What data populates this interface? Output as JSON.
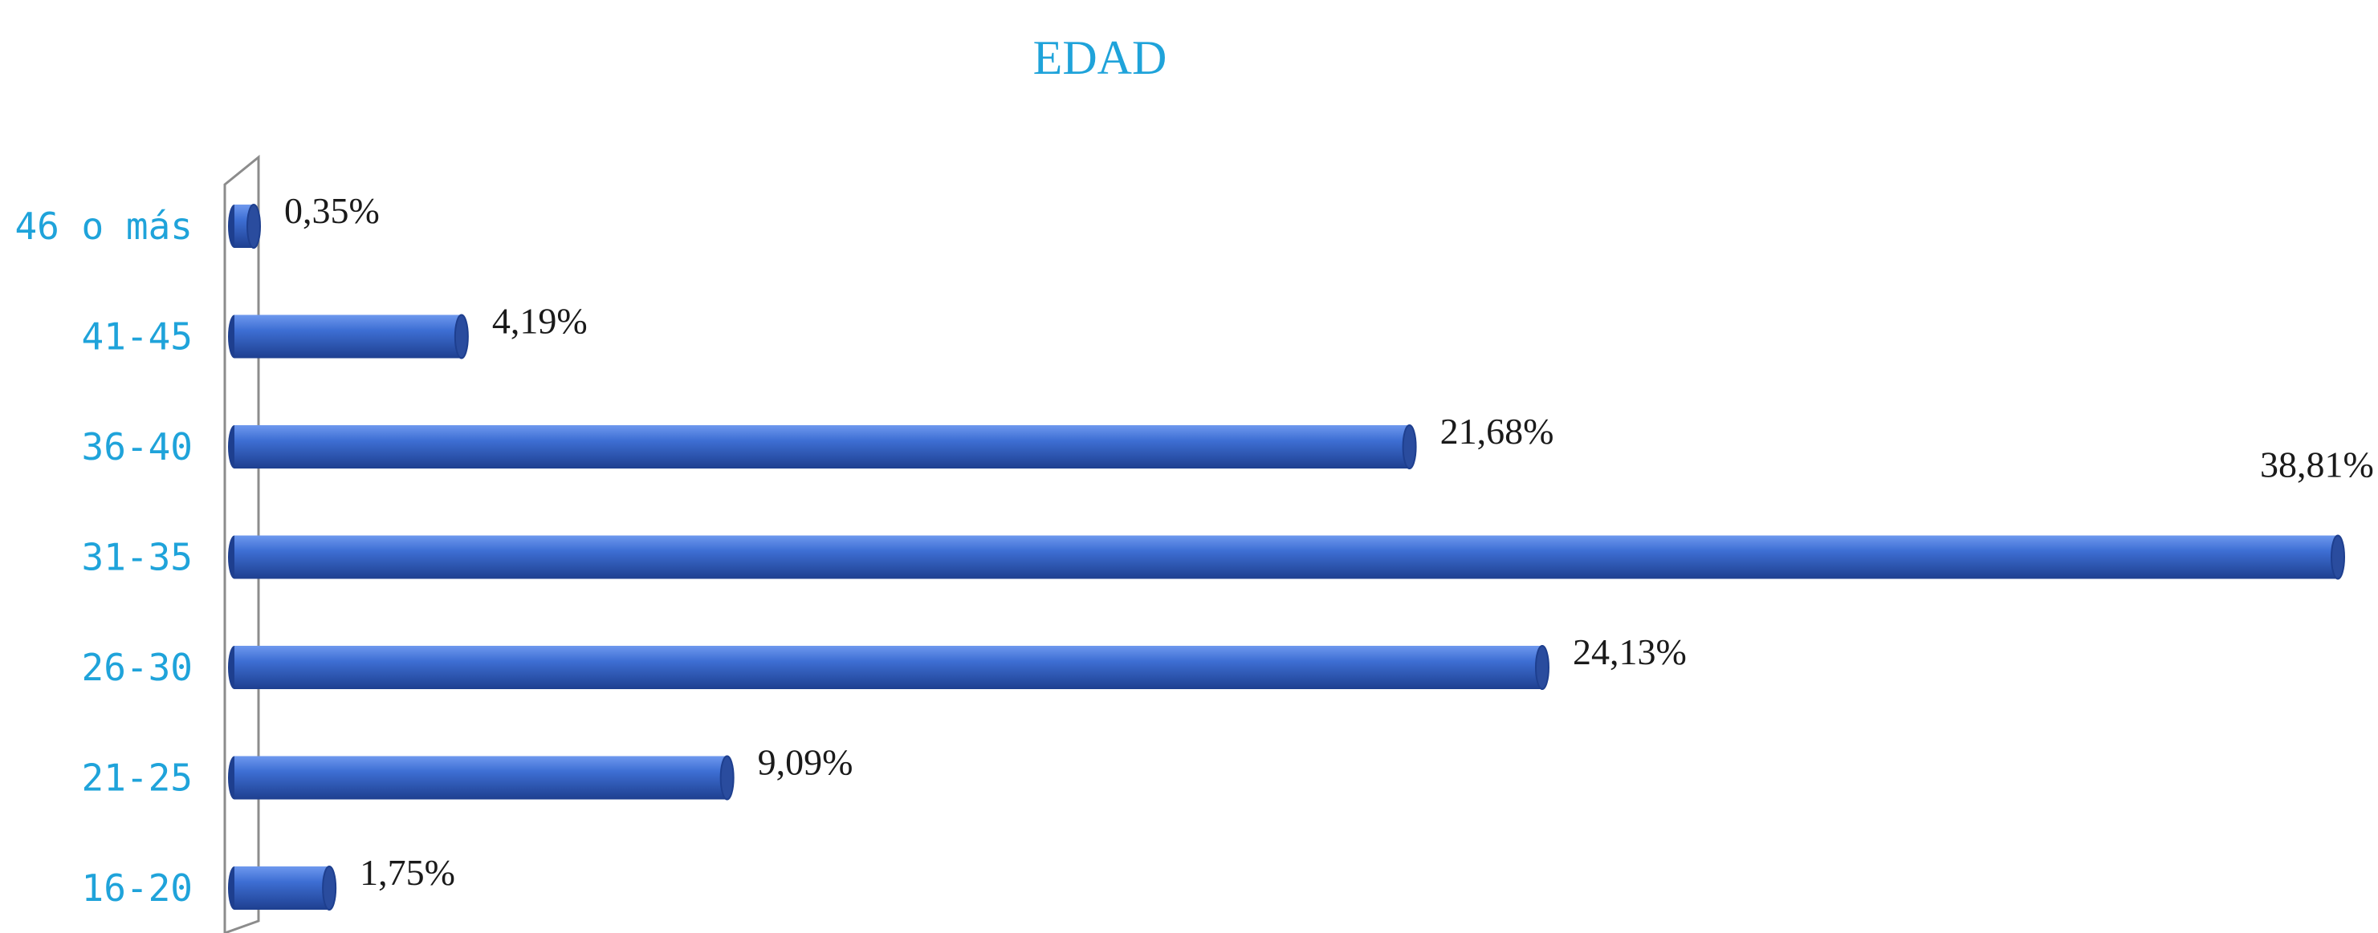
{
  "chart_data": {
    "type": "bar",
    "orientation": "horizontal",
    "style": "3d-cylinder",
    "title": "EDAD",
    "xlabel": "",
    "ylabel": "",
    "categories": [
      "16-20",
      "21-25",
      "26-30",
      "31-35",
      "36-40",
      "41-45",
      "46 o más"
    ],
    "values": [
      1.75,
      9.09,
      24.13,
      38.81,
      21.68,
      4.19,
      0.35
    ],
    "data_labels": [
      "1,75%",
      "9,09%",
      "24,13%",
      "38,81%",
      "21,68%",
      "4,19%",
      "0,35%"
    ],
    "xlim": [
      0,
      38.81
    ],
    "grid": false,
    "legend": "none"
  },
  "colors": {
    "title": "#1FA3DA",
    "category_labels": "#1FA3DA",
    "bar_fill": "#3E6FD4",
    "bar_highlight": "#6E98EE",
    "bar_shadow": "#1E3F8F",
    "bar_cap": "#2A4C9E",
    "value_labels": "#1a1a1a",
    "axis": "#8c8c8c"
  }
}
